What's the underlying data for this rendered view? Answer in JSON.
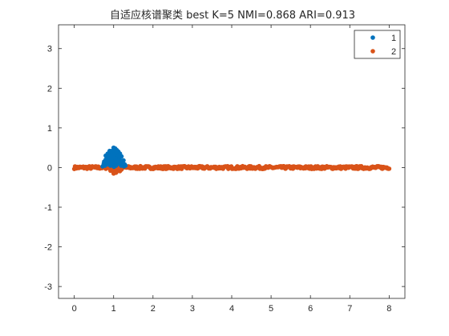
{
  "chart_data": {
    "type": "scatter",
    "title": "自适应核谱聚类  best K=5  NMI=0.868  ARI=0.913",
    "xlabel": "",
    "ylabel": "",
    "xlim": [
      -0.4,
      8.4
    ],
    "ylim": [
      -3.3,
      3.6
    ],
    "xticks": [
      0,
      1,
      2,
      3,
      4,
      5,
      6,
      7,
      8
    ],
    "yticks": [
      -3,
      -2,
      -1,
      0,
      1,
      2,
      3
    ],
    "xtick_labels": [
      "0",
      "1",
      "2",
      "3",
      "4",
      "5",
      "6",
      "7",
      "8"
    ],
    "ytick_labels": [
      "-3",
      "-2",
      "-1",
      "0",
      "1",
      "2",
      "3"
    ],
    "grid": false,
    "legend_position": "top-right",
    "series": [
      {
        "name": "1",
        "color": "#0072BD",
        "x": [
          0.72,
          0.75,
          0.78,
          0.8,
          0.82,
          0.84,
          0.86,
          0.88,
          0.9,
          0.92,
          0.94,
          0.96,
          0.98,
          1.0,
          1.02,
          1.04,
          1.06,
          1.08,
          1.1,
          1.12,
          1.14,
          1.16,
          1.18,
          1.2,
          1.22,
          1.25,
          1.28,
          1.3,
          0.8,
          0.85,
          0.9,
          0.95,
          1.0,
          1.05,
          1.1,
          1.15,
          1.2,
          0.83,
          0.88,
          0.93,
          0.98,
          1.03,
          1.08,
          1.13,
          0.87,
          0.92,
          0.97,
          1.02,
          1.07,
          0.95,
          1.0,
          1.05,
          0.98,
          1.02,
          0.76,
          0.86,
          0.96,
          1.06,
          1.16,
          1.26,
          0.91,
          1.01,
          1.11,
          0.79,
          1.19
        ],
        "y": [
          0.03,
          0.1,
          0.05,
          0.2,
          0.12,
          0.28,
          0.08,
          0.32,
          0.18,
          0.38,
          0.1,
          0.42,
          0.25,
          0.45,
          0.15,
          0.48,
          0.3,
          0.44,
          0.1,
          0.4,
          0.22,
          0.35,
          0.12,
          0.28,
          0.06,
          0.18,
          0.08,
          0.05,
          0.3,
          0.35,
          0.42,
          0.2,
          0.35,
          0.4,
          0.3,
          0.22,
          0.15,
          0.1,
          0.25,
          0.32,
          0.1,
          0.25,
          0.2,
          0.3,
          0.15,
          0.05,
          0.38,
          0.1,
          0.12,
          0.28,
          0.5,
          0.22,
          0.15,
          0.32,
          0.15,
          0.2,
          0.06,
          0.05,
          0.1,
          0.03,
          0.12,
          0.02,
          0.16,
          0.08,
          0.05
        ]
      },
      {
        "name": "2",
        "color": "#D95319",
        "x": [],
        "y": [],
        "band": {
          "x_start": 0.0,
          "x_end": 8.0,
          "n": 420,
          "y_spread": 0.035
        },
        "extra_points": {
          "x": [
            0.92,
            0.96,
            1.0,
            1.04,
            1.08,
            1.12,
            1.16,
            1.2,
            1.0,
            1.06
          ],
          "y": [
            -0.08,
            -0.05,
            -0.12,
            -0.06,
            -0.1,
            -0.04,
            -0.09,
            -0.05,
            -0.15,
            -0.13
          ]
        }
      }
    ]
  }
}
